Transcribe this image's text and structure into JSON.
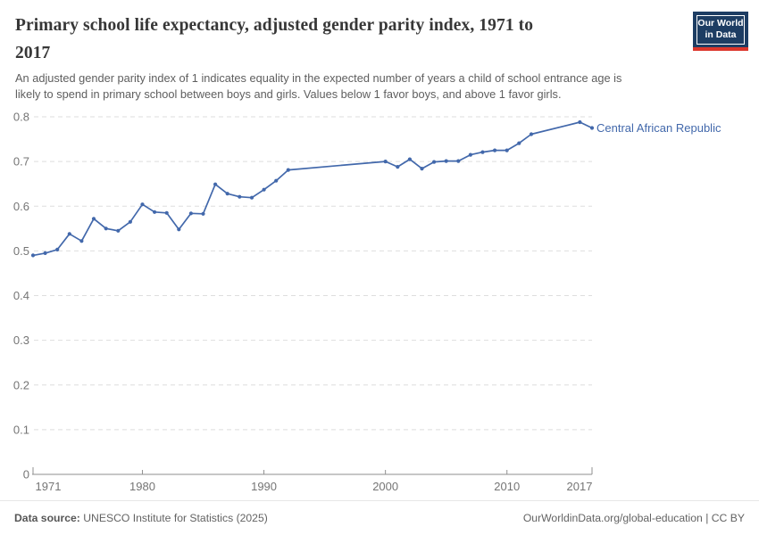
{
  "header": {
    "title_line1": "Primary school life expectancy, adjusted gender parity index, 1971 to",
    "title_line2": "2017",
    "subtitle_line1": "An adjusted gender parity index of 1 indicates equality in the expected number of years a child of school entrance age is",
    "subtitle_line2": "likely to spend in primary school between boys and girls. Values below 1 favor boys, and above 1 favor girls."
  },
  "logo": {
    "line1": "Our World",
    "line2": "in Data",
    "bg_color": "#1d3d63",
    "stripe_color": "#dc362c"
  },
  "chart_data": {
    "type": "line",
    "title": "Primary school life expectancy, adjusted gender parity index, 1971 to 2017",
    "xlabel": "",
    "ylabel": "",
    "xlim": [
      1971,
      2017
    ],
    "ylim": [
      0,
      0.8
    ],
    "xticks": [
      1971,
      1980,
      1990,
      2000,
      2010,
      2017
    ],
    "yticks": [
      0,
      0.1,
      0.2,
      0.3,
      0.4,
      0.5,
      0.6,
      0.7,
      0.8
    ],
    "grid": true,
    "grid_style": "dashed",
    "legend_position": "end-of-line-label",
    "entity_label": "Central African Republic",
    "line_color": "#4268ab",
    "axis_text_color": "#757575",
    "series": [
      {
        "name": "Central African Republic",
        "color": "#4268ab",
        "points": [
          {
            "year": 1971,
            "value": 0.49
          },
          {
            "year": 1972,
            "value": 0.495
          },
          {
            "year": 1973,
            "value": 0.503
          },
          {
            "year": 1974,
            "value": 0.538
          },
          {
            "year": 1975,
            "value": 0.522
          },
          {
            "year": 1976,
            "value": 0.572
          },
          {
            "year": 1977,
            "value": 0.55
          },
          {
            "year": 1978,
            "value": 0.545
          },
          {
            "year": 1979,
            "value": 0.565
          },
          {
            "year": 1980,
            "value": 0.604
          },
          {
            "year": 1981,
            "value": 0.587
          },
          {
            "year": 1982,
            "value": 0.585
          },
          {
            "year": 1983,
            "value": 0.548
          },
          {
            "year": 1984,
            "value": 0.584
          },
          {
            "year": 1985,
            "value": 0.583
          },
          {
            "year": 1986,
            "value": 0.649
          },
          {
            "year": 1987,
            "value": 0.628
          },
          {
            "year": 1988,
            "value": 0.621
          },
          {
            "year": 1989,
            "value": 0.619
          },
          {
            "year": 1990,
            "value": 0.637
          },
          {
            "year": 1991,
            "value": 0.657
          },
          {
            "year": 1992,
            "value": 0.681
          },
          {
            "year": 2000,
            "value": 0.7
          },
          {
            "year": 2001,
            "value": 0.688
          },
          {
            "year": 2002,
            "value": 0.705
          },
          {
            "year": 2003,
            "value": 0.684
          },
          {
            "year": 2004,
            "value": 0.699
          },
          {
            "year": 2005,
            "value": 0.701
          },
          {
            "year": 2006,
            "value": 0.701
          },
          {
            "year": 2007,
            "value": 0.715
          },
          {
            "year": 2008,
            "value": 0.721
          },
          {
            "year": 2009,
            "value": 0.725
          },
          {
            "year": 2010,
            "value": 0.725
          },
          {
            "year": 2011,
            "value": 0.741
          },
          {
            "year": 2012,
            "value": 0.761
          },
          {
            "year": 2016,
            "value": 0.788
          },
          {
            "year": 2017,
            "value": 0.775
          }
        ]
      }
    ]
  },
  "footer": {
    "datasource_label": "Data source:",
    "datasource_text": "UNESCO Institute for Statistics (2025)",
    "credit_text": "OurWorldinData.org/global-education | CC BY"
  }
}
